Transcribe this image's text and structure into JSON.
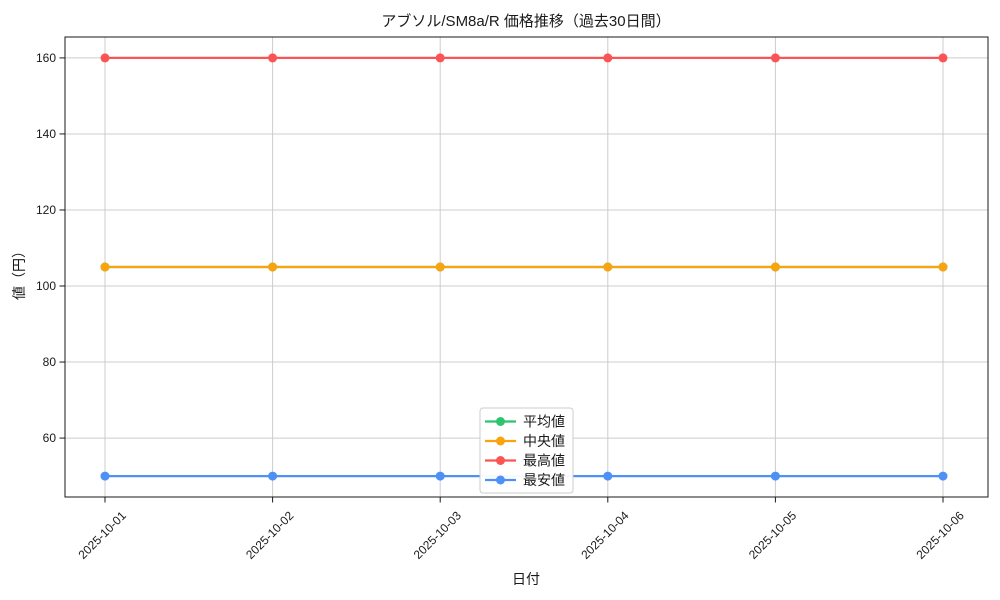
{
  "chart_data": {
    "type": "line",
    "title": "アブソル/SM8a/R 価格推移（過去30日間）",
    "xlabel": "日付",
    "ylabel": "値（円）",
    "categories": [
      "2025-10-01",
      "2025-10-02",
      "2025-10-03",
      "2025-10-04",
      "2025-10-05",
      "2025-10-06"
    ],
    "series": [
      {
        "name": "平均値",
        "color": "#2cc46d",
        "values": [
          105,
          105,
          105,
          105,
          105,
          105
        ]
      },
      {
        "name": "中央値",
        "color": "#f9a40e",
        "values": [
          105,
          105,
          105,
          105,
          105,
          105
        ]
      },
      {
        "name": "最高値",
        "color": "#fb5455",
        "values": [
          160,
          160,
          160,
          160,
          160,
          160
        ]
      },
      {
        "name": "最安値",
        "color": "#4d91f6",
        "values": [
          50,
          50,
          50,
          50,
          50,
          50
        ]
      }
    ],
    "yticks": [
      60,
      80,
      100,
      120,
      140,
      160
    ],
    "ylim": [
      44.5,
      165.5
    ],
    "grid": true,
    "grid_color": "#cccccc",
    "spine_color": "#1a1a1a",
    "background": "#ffffff",
    "marker": "circle",
    "x_tick_rotation_deg": 45,
    "legend_position": "lower-center-inside",
    "notes": "平均値 line is not visible on the plot: it coincides with and is drawn beneath the 中央値 line at 105."
  }
}
